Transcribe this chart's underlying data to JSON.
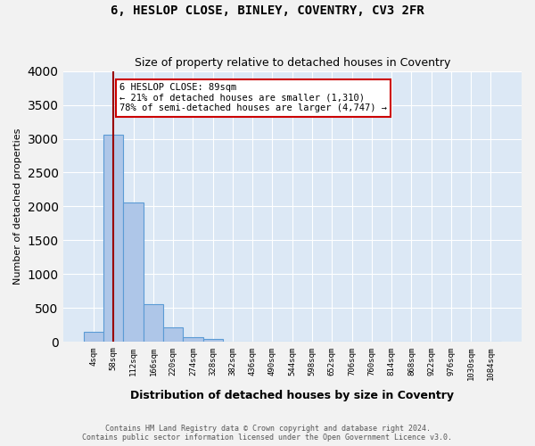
{
  "title1": "6, HESLOP CLOSE, BINLEY, COVENTRY, CV3 2FR",
  "title2": "Size of property relative to detached houses in Coventry",
  "xlabel": "Distribution of detached houses by size in Coventry",
  "ylabel": "Number of detached properties",
  "bin_labels": [
    "4sqm",
    "58sqm",
    "112sqm",
    "166sqm",
    "220sqm",
    "274sqm",
    "328sqm",
    "382sqm",
    "436sqm",
    "490sqm",
    "544sqm",
    "598sqm",
    "652sqm",
    "706sqm",
    "760sqm",
    "814sqm",
    "868sqm",
    "922sqm",
    "976sqm",
    "1030sqm",
    "1084sqm"
  ],
  "bar_values": [
    155,
    3060,
    2060,
    560,
    220,
    70,
    50,
    0,
    0,
    0,
    0,
    0,
    0,
    0,
    0,
    0,
    0,
    0,
    0,
    0,
    0
  ],
  "bar_color": "#aec6e8",
  "bar_edge_color": "#5b9bd5",
  "property_line_x": 1,
  "property_sqm": 89,
  "pct_smaller": 21,
  "n_smaller": "1,310",
  "pct_larger_semi": 78,
  "n_larger_semi": "4,747",
  "annotation_box_color": "#cc0000",
  "vline_color": "#990000",
  "ylim": [
    0,
    4000
  ],
  "footer1": "Contains HM Land Registry data © Crown copyright and database right 2024.",
  "footer2": "Contains public sector information licensed under the Open Government Licence v3.0.",
  "background_color": "#dce8f5",
  "fig_background": "#f2f2f2"
}
